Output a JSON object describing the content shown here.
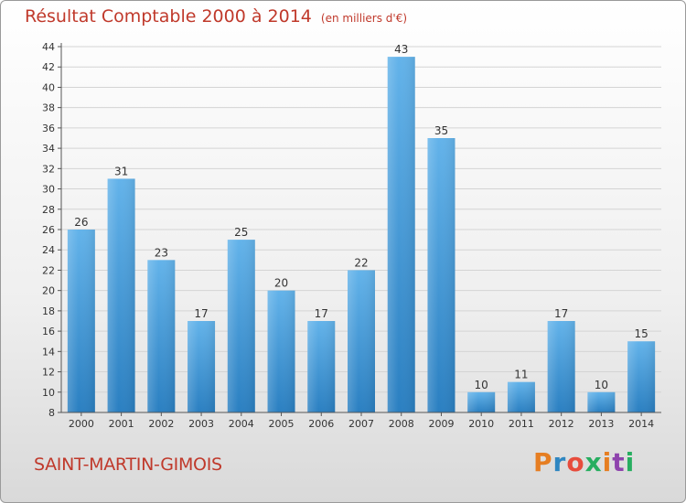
{
  "chart_data": {
    "type": "bar",
    "title": "Résultat Comptable 2000 à 2014",
    "subtitle": "(en milliers d'€)",
    "categories": [
      "2000",
      "2001",
      "2002",
      "2003",
      "2004",
      "2005",
      "2006",
      "2007",
      "2008",
      "2009",
      "2010",
      "2011",
      "2012",
      "2013",
      "2014"
    ],
    "values": [
      26,
      31,
      23,
      17,
      25,
      20,
      17,
      22,
      43,
      35,
      10,
      11,
      17,
      10,
      15
    ],
    "ylim": [
      8,
      44
    ],
    "yticks": [
      8,
      10,
      12,
      14,
      16,
      18,
      20,
      22,
      24,
      26,
      28,
      30,
      32,
      34,
      36,
      38,
      40,
      42,
      44
    ],
    "grid": true,
    "xlabel": "",
    "ylabel": ""
  },
  "footer": {
    "commune": "SAINT-MARTIN-GIMOIS",
    "logo_text": "Proxiti"
  },
  "colors": {
    "title": "#c0392b",
    "bar_top": "#63b3ea",
    "bar_bottom": "#2a7fc1",
    "grid": "#d4d4d4",
    "logo": [
      "#e67e22",
      "#2e86c1",
      "#e74c3c",
      "#27ae60",
      "#e67e22",
      "#8e44ad",
      "#27ae60"
    ]
  }
}
